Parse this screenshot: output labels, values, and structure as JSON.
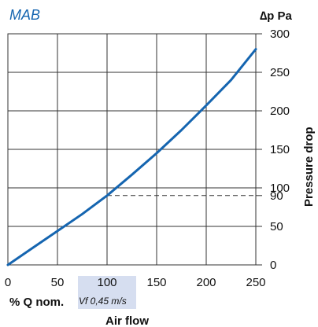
{
  "chart_data": {
    "type": "line",
    "title": "MAB",
    "xlabel": "Air flow",
    "xlabel_prefix": "% Q nom.",
    "x_marker_note": "Vf 0,45 m/s",
    "ylabel": "Pressure drop",
    "yunit": "∆p Pa",
    "xlim": [
      0,
      250
    ],
    "ylim": [
      0,
      300
    ],
    "x_ticks": [
      "0",
      "50",
      "100",
      "150",
      "200",
      "250"
    ],
    "y_ticks": [
      "0",
      "50",
      "90",
      "100",
      "150",
      "200",
      "250",
      "300"
    ],
    "grid": true,
    "series": [
      {
        "x": [
          0,
          25,
          50,
          75,
          100,
          125,
          150,
          175,
          200,
          225,
          250
        ],
        "y": [
          0,
          22,
          44,
          66,
          90,
          117,
          145,
          175,
          207,
          240,
          280
        ]
      }
    ],
    "reference_point": {
      "x": 100,
      "y": 90
    },
    "reference_x_highlight": 100,
    "colors": {
      "line": "#1565b0",
      "title": "#1565b0",
      "highlight": "#d6def0",
      "grid": "#333333"
    }
  }
}
